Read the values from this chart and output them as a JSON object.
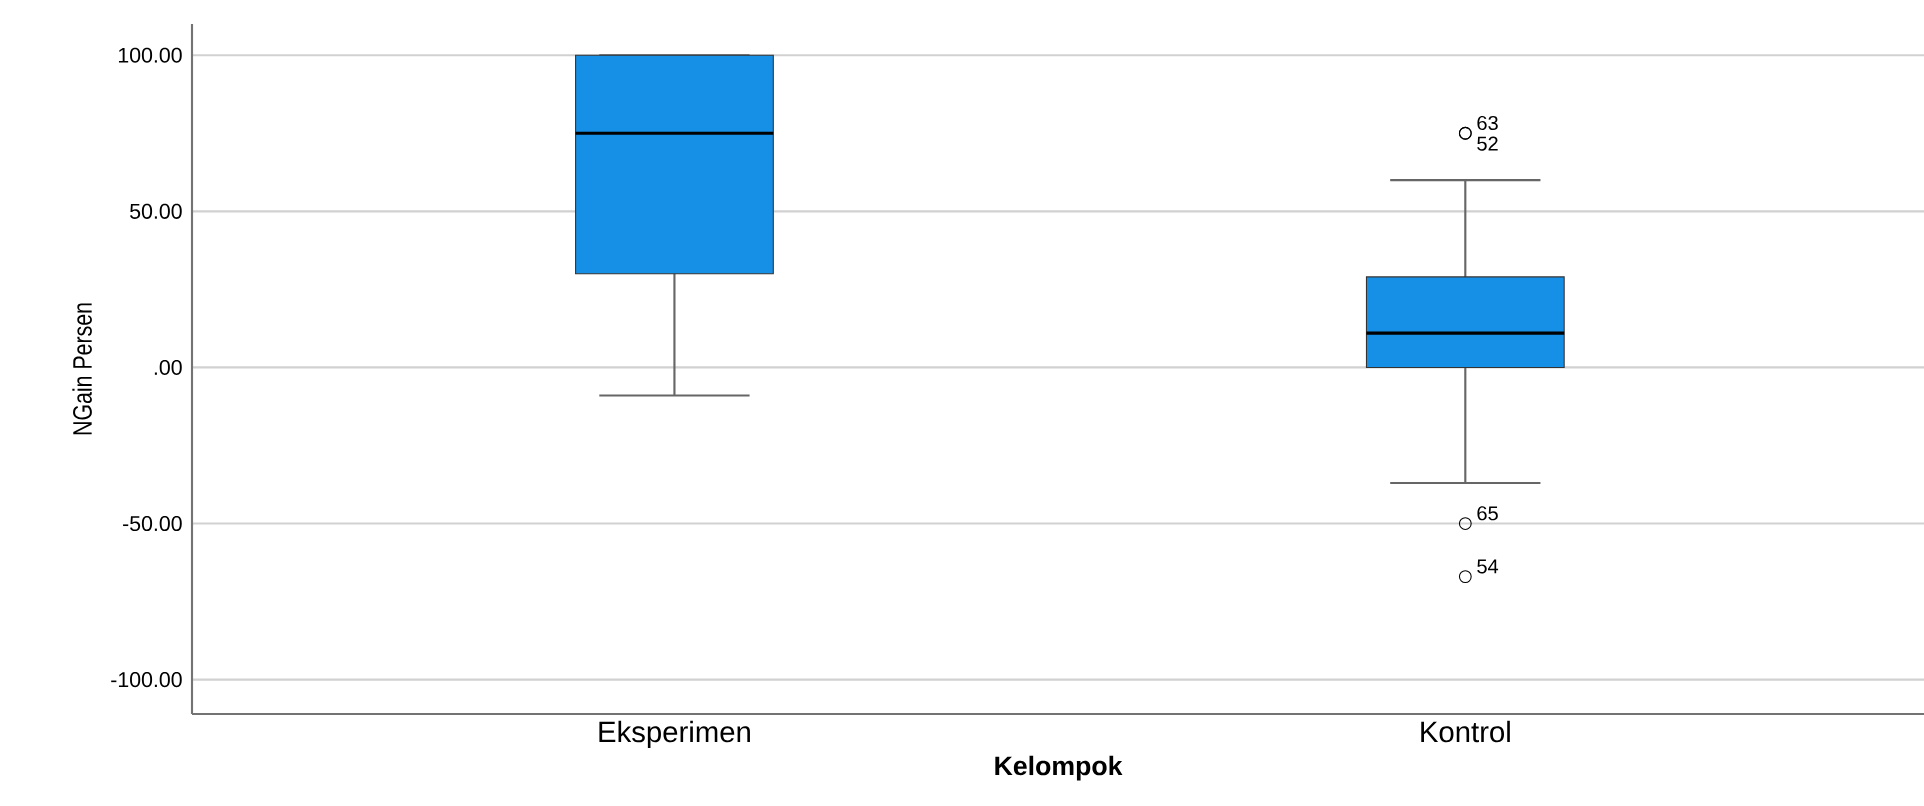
{
  "chart_data": {
    "type": "box",
    "xlabel": "Kelompok",
    "ylabel": "NGain Persen",
    "categories": [
      "Eksperimen",
      "Kontrol"
    ],
    "boxes": [
      {
        "low": -9,
        "q1": 30,
        "median": 75,
        "q3": 100,
        "high": 100
      },
      {
        "low": -37,
        "q1": 0,
        "median": 11,
        "q3": 29,
        "high": 60,
        "outliers": [
          75,
          75,
          -50,
          -67
        ]
      }
    ],
    "color": "#1590e6",
    "ylim": [
      -111,
      110
    ],
    "yticks": [
      {
        "value": 100,
        "label": "100.00"
      },
      {
        "value": 50,
        "label": "50.00"
      },
      {
        "value": 0,
        "label": ".00"
      },
      {
        "value": -50,
        "label": "-50.00"
      },
      {
        "value": -100,
        "label": "-100.00"
      }
    ],
    "grid": "y",
    "annotations": [
      "63",
      "52",
      "65",
      "54"
    ]
  }
}
